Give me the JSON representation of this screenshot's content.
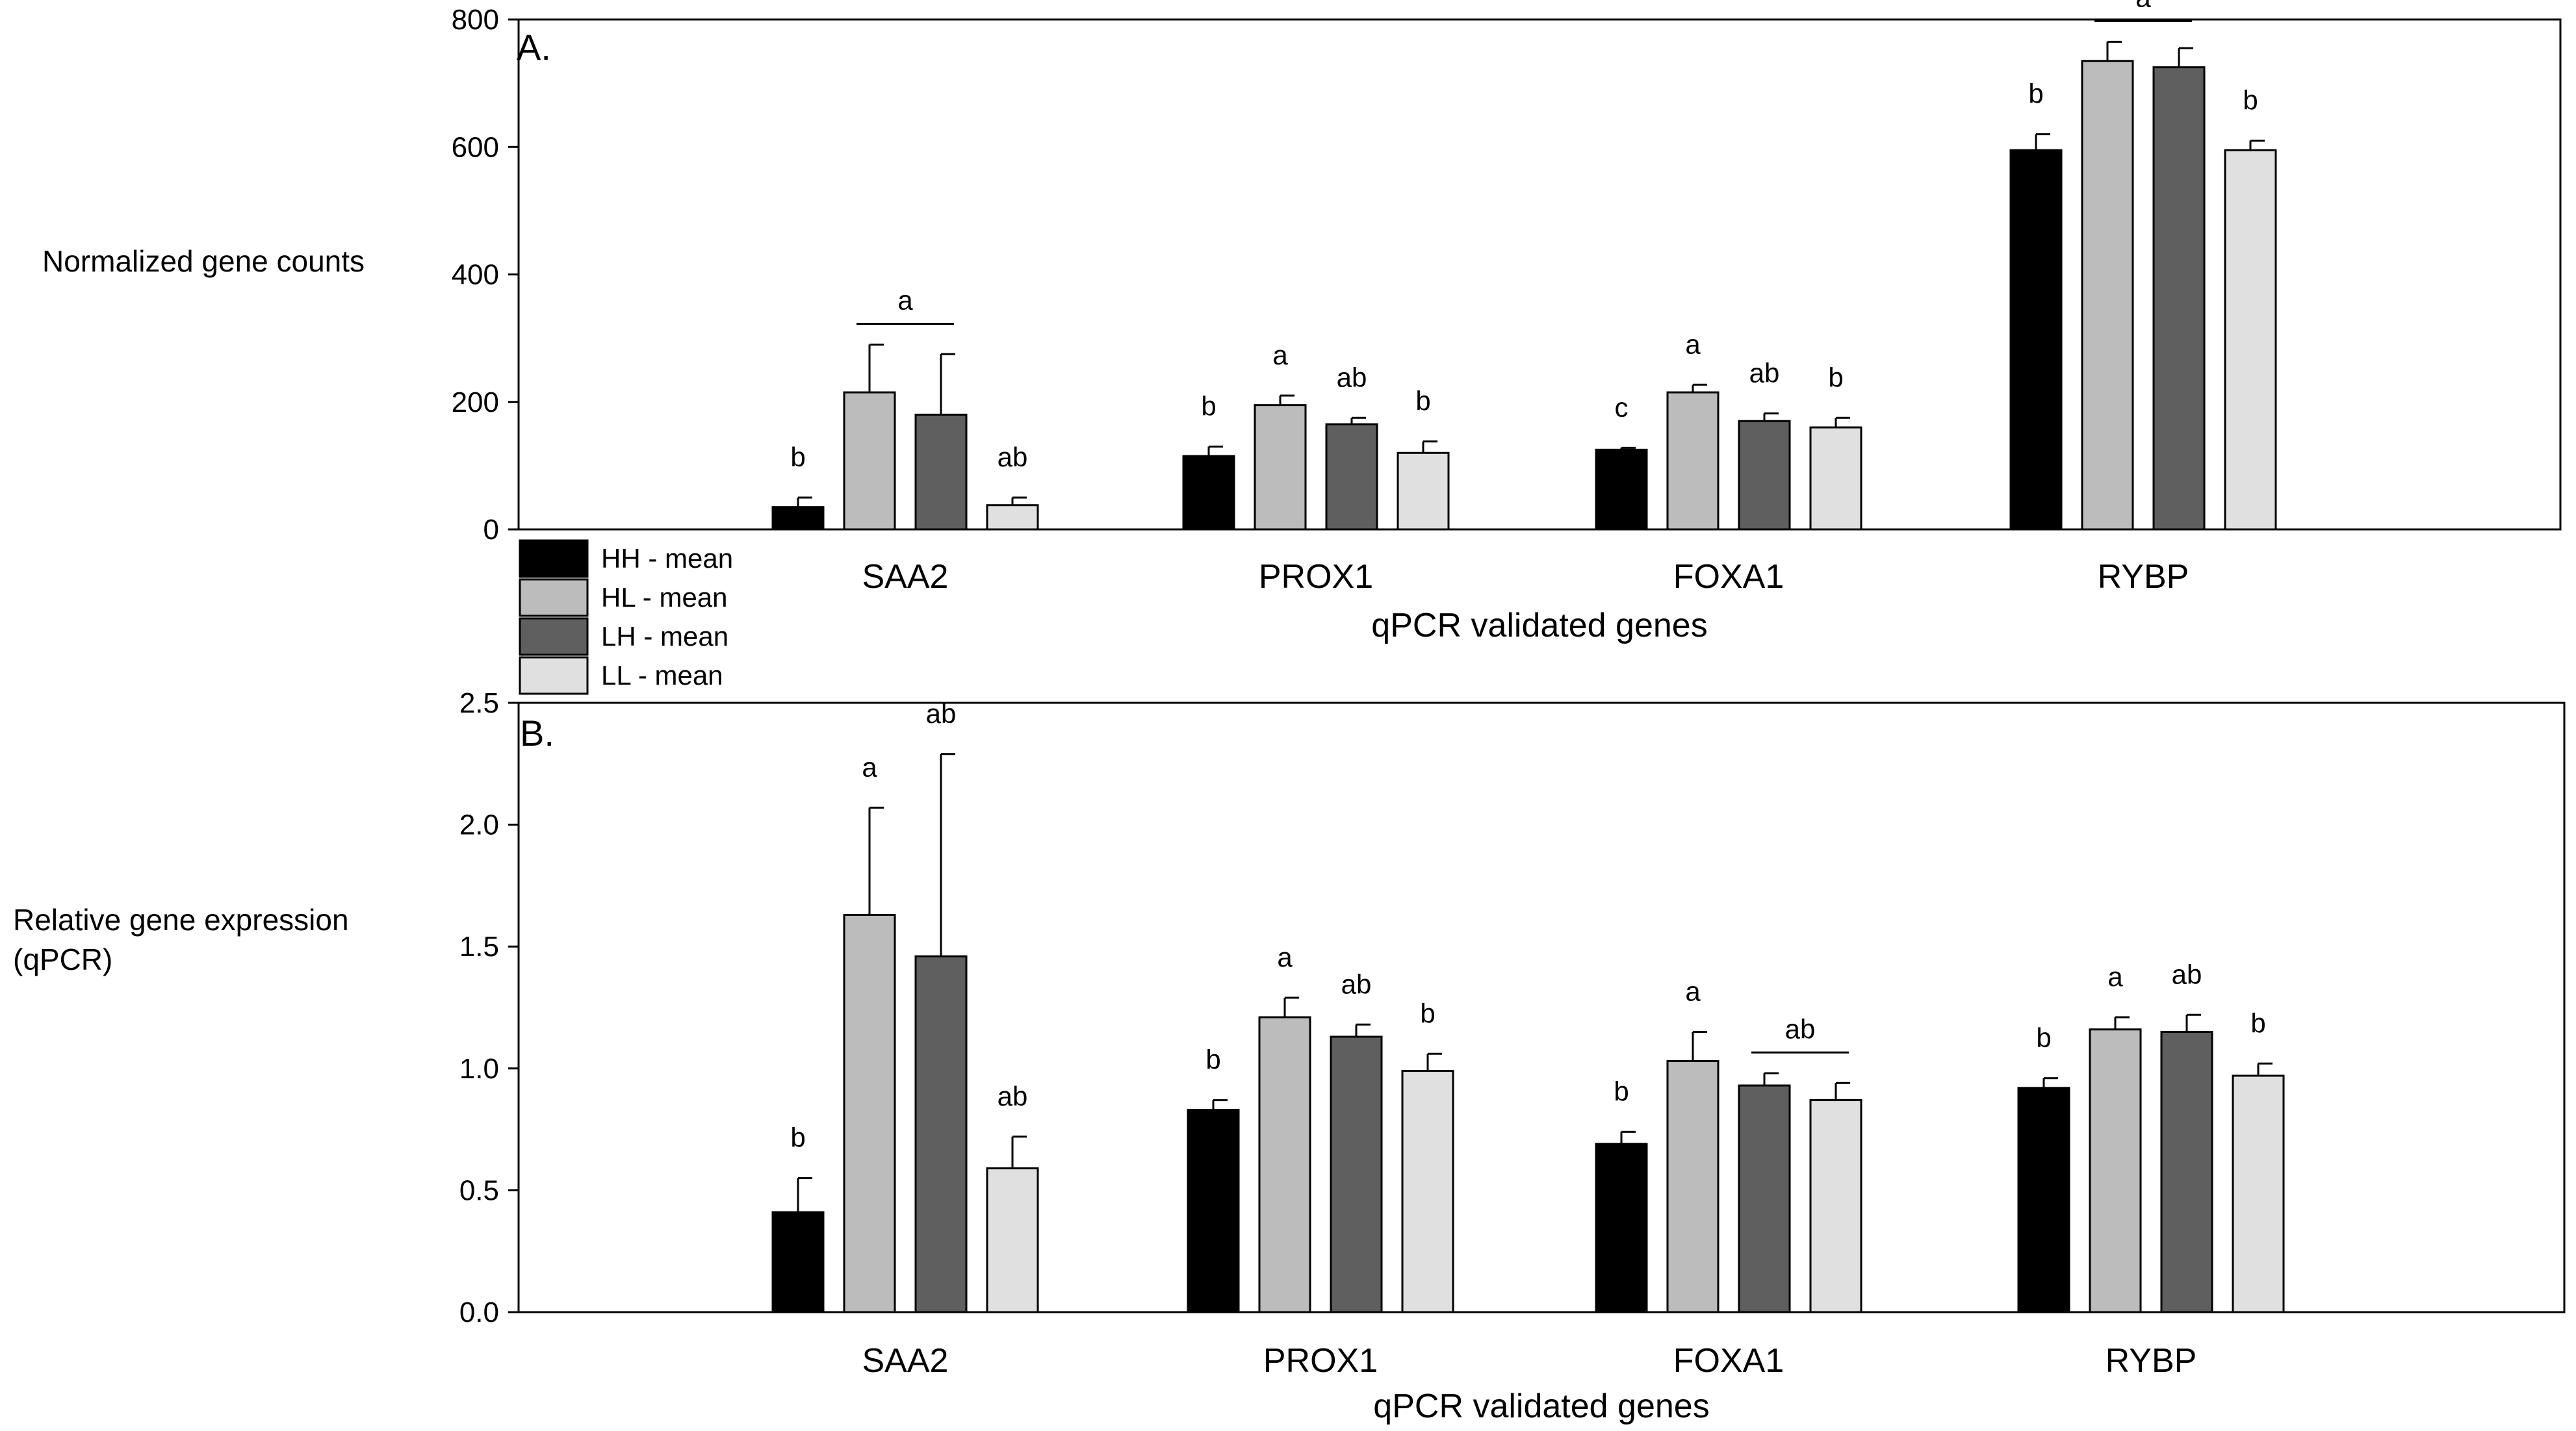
{
  "colors": {
    "HH": "#000000",
    "HL": "#bcbcbc",
    "LH": "#5f5f5f",
    "LL": "#e0e0e0",
    "axis": "#000000"
  },
  "legend": [
    {
      "key": "HH",
      "label": "HH - mean"
    },
    {
      "key": "HL",
      "label": "HL - mean"
    },
    {
      "key": "LH",
      "label": "LH - mean"
    },
    {
      "key": "LL",
      "label": "LL - mean"
    }
  ],
  "chart_data": [
    {
      "type": "bar",
      "panel_label": "A.",
      "ylabel_lines": [
        "Normalized gene counts"
      ],
      "xlabel": "qPCR validated genes",
      "ylim": [
        0,
        800
      ],
      "yticks": [
        0,
        200,
        400,
        600,
        800
      ],
      "ytick_labels": [
        "0",
        "200",
        "400",
        "600",
        "800"
      ],
      "categories": [
        "SAA2",
        "PROX1",
        "FOXA1",
        "RYBP"
      ],
      "series": [
        {
          "name": "HH - mean",
          "key": "HH",
          "values": [
            35,
            115,
            125,
            595
          ],
          "errors": [
            15,
            15,
            3,
            25
          ]
        },
        {
          "name": "HL - mean",
          "key": "HL",
          "values": [
            215,
            195,
            215,
            735
          ],
          "errors": [
            75,
            15,
            12,
            30
          ]
        },
        {
          "name": "LH - mean",
          "key": "LH",
          "values": [
            180,
            165,
            170,
            725
          ],
          "errors": [
            95,
            10,
            12,
            30
          ]
        },
        {
          "name": "LL - mean",
          "key": "LL",
          "values": [
            38,
            120,
            160,
            595
          ],
          "errors": [
            12,
            18,
            15,
            15
          ]
        }
      ],
      "significance": [
        {
          "category": 0,
          "series": 0,
          "text": "b"
        },
        {
          "category": 0,
          "series": [
            1,
            2
          ],
          "text": "a"
        },
        {
          "category": 0,
          "series": 3,
          "text": "ab"
        },
        {
          "category": 1,
          "series": 0,
          "text": "b"
        },
        {
          "category": 1,
          "series": 1,
          "text": "a"
        },
        {
          "category": 1,
          "series": 2,
          "text": "ab"
        },
        {
          "category": 1,
          "series": 3,
          "text": "b"
        },
        {
          "category": 2,
          "series": 0,
          "text": "c"
        },
        {
          "category": 2,
          "series": 1,
          "text": "a"
        },
        {
          "category": 2,
          "series": 2,
          "text": "ab"
        },
        {
          "category": 2,
          "series": 3,
          "text": "b"
        },
        {
          "category": 3,
          "series": 0,
          "text": "b"
        },
        {
          "category": 3,
          "series": [
            1,
            2
          ],
          "text": "a"
        },
        {
          "category": 3,
          "series": 3,
          "text": "b"
        }
      ]
    },
    {
      "type": "bar",
      "panel_label": "B.",
      "ylabel_lines": [
        "Relative gene expression",
        "(qPCR)"
      ],
      "xlabel": "qPCR validated genes",
      "ylim": [
        0,
        2.5
      ],
      "yticks": [
        0,
        0.5,
        1.0,
        1.5,
        2.0,
        2.5
      ],
      "ytick_labels": [
        "0.0",
        "0.5",
        "1.0",
        "1.5",
        "2.0",
        "2.5"
      ],
      "categories": [
        "SAA2",
        "PROX1",
        "FOXA1",
        "RYBP"
      ],
      "series": [
        {
          "name": "HH - mean",
          "key": "HH",
          "values": [
            0.41,
            0.83,
            0.69,
            0.92
          ],
          "errors": [
            0.14,
            0.04,
            0.05,
            0.04
          ]
        },
        {
          "name": "HL - mean",
          "key": "HL",
          "values": [
            1.63,
            1.21,
            1.03,
            1.16
          ],
          "errors": [
            0.44,
            0.08,
            0.12,
            0.05
          ]
        },
        {
          "name": "LH - mean",
          "key": "LH",
          "values": [
            1.46,
            1.13,
            0.93,
            1.15
          ],
          "errors": [
            0.83,
            0.05,
            0.05,
            0.07
          ]
        },
        {
          "name": "LL - mean",
          "key": "LL",
          "values": [
            0.59,
            0.99,
            0.87,
            0.97
          ],
          "errors": [
            0.13,
            0.07,
            0.07,
            0.05
          ]
        }
      ],
      "significance": [
        {
          "category": 0,
          "series": 0,
          "text": "b"
        },
        {
          "category": 0,
          "series": 1,
          "text": "a"
        },
        {
          "category": 0,
          "series": 2,
          "text": "ab"
        },
        {
          "category": 0,
          "series": 3,
          "text": "ab"
        },
        {
          "category": 1,
          "series": 0,
          "text": "b"
        },
        {
          "category": 1,
          "series": 1,
          "text": "a"
        },
        {
          "category": 1,
          "series": 2,
          "text": "ab"
        },
        {
          "category": 1,
          "series": 3,
          "text": "b"
        },
        {
          "category": 2,
          "series": 0,
          "text": "b"
        },
        {
          "category": 2,
          "series": 1,
          "text": "a"
        },
        {
          "category": 2,
          "series": [
            2,
            3
          ],
          "text": "ab"
        },
        {
          "category": 3,
          "series": 0,
          "text": "b"
        },
        {
          "category": 3,
          "series": 1,
          "text": "a"
        },
        {
          "category": 3,
          "series": 2,
          "text": "ab"
        },
        {
          "category": 3,
          "series": 3,
          "text": "b"
        }
      ]
    }
  ]
}
